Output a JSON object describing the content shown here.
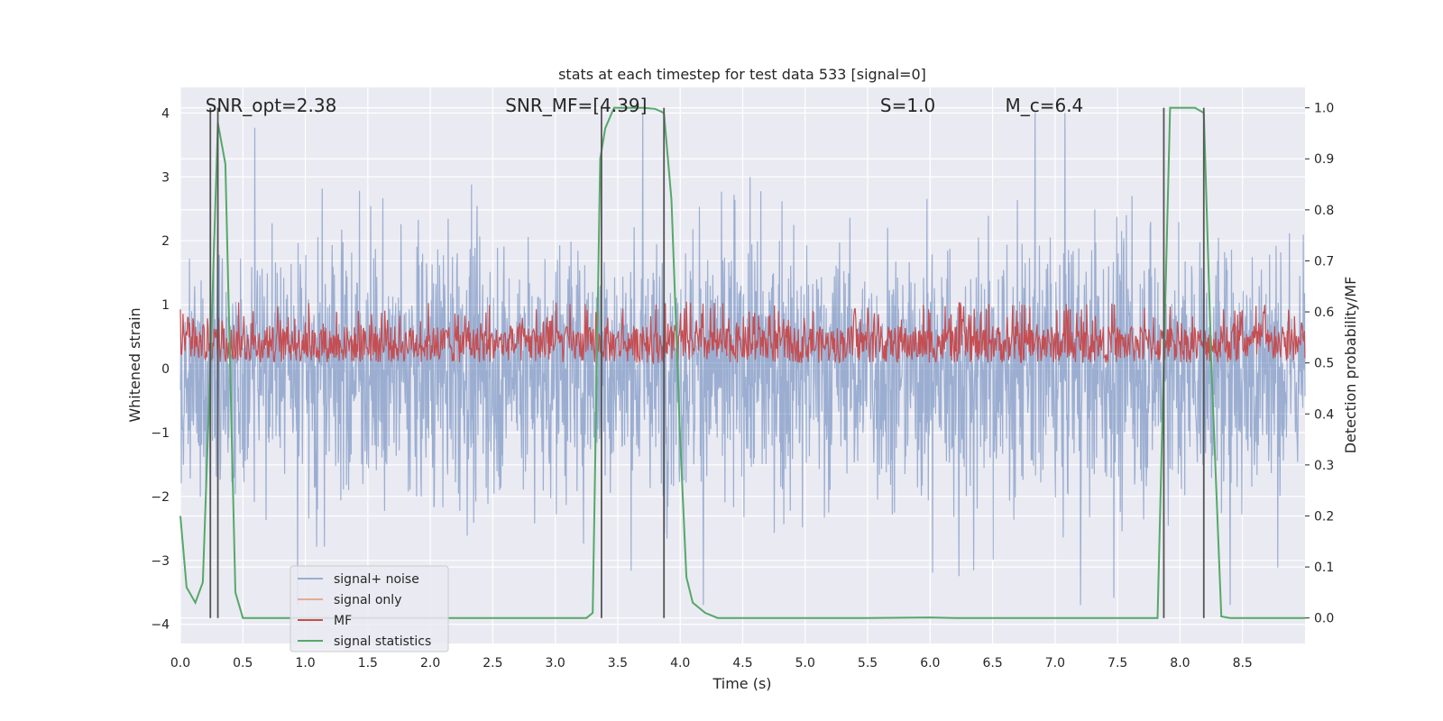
{
  "chart_data": {
    "type": "line",
    "title": "stats at each timestep for test data 533 [signal=0]",
    "xlabel": "Time (s)",
    "ylabel": "Whitened strain",
    "ylabel_right": "Detection probability/MF",
    "xlim": [
      0,
      9.0
    ],
    "ylim": [
      -4.3,
      4.4
    ],
    "ylim_right": [
      -0.05,
      1.04
    ],
    "x_ticks": [
      0.0,
      0.5,
      1.0,
      1.5,
      2.0,
      2.5,
      3.0,
      3.5,
      4.0,
      4.5,
      5.0,
      5.5,
      6.0,
      6.5,
      7.0,
      7.5,
      8.0,
      8.5
    ],
    "x_tick_labels": [
      "0.0",
      "0.5",
      "1.0",
      "1.5",
      "2.0",
      "2.5",
      "3.0",
      "3.5",
      "4.0",
      "4.5",
      "5.0",
      "5.5",
      "6.0",
      "6.5",
      "7.0",
      "7.5",
      "8.0",
      "8.5"
    ],
    "y_ticks": [
      4,
      3,
      2,
      1,
      0,
      -1,
      -2,
      -3,
      -4
    ],
    "y_tick_labels": [
      "4",
      "3",
      "2",
      "1",
      "0",
      "−1",
      "−2",
      "−3",
      "−4"
    ],
    "y_ticks_right": [
      1.0,
      0.9,
      0.8,
      0.7,
      0.6,
      0.5,
      0.4,
      0.3,
      0.2,
      0.1,
      0.0
    ],
    "y_tick_labels_right": [
      "1.0",
      "0.9",
      "0.8",
      "0.7",
      "0.6",
      "0.5",
      "0.4",
      "0.3",
      "0.2",
      "0.1",
      "0.0"
    ],
    "grid": true,
    "legend_position": "lower-left",
    "annotations": [
      {
        "text": "SNR_opt=2.38",
        "x": 0.2
      },
      {
        "text": "SNR_MF=[4.39]",
        "x": 2.6
      },
      {
        "text": "S=1.0",
        "x": 5.6
      },
      {
        "text": "M_c=6.4",
        "x": 6.6
      }
    ],
    "vertical_lines_x": [
      0.24,
      0.3,
      3.37,
      3.87,
      7.87,
      8.19
    ],
    "series": [
      {
        "name": "signal+ noise",
        "color": "#4c72b0",
        "style": "dense noise",
        "amplitude_sd": 1.0,
        "peak_range": [
          -3.7,
          4.0
        ]
      },
      {
        "name": "signal only",
        "color": "#dd8452",
        "values": []
      },
      {
        "name": "MF",
        "color": "#c44e52",
        "axis": "right",
        "style": "dense noise",
        "range": [
          0.5,
          0.62
        ]
      },
      {
        "name": "signal statistics",
        "color": "#55a868",
        "axis": "right",
        "x": [
          0.0,
          0.05,
          0.12,
          0.18,
          0.24,
          0.3,
          0.36,
          0.44,
          0.5,
          0.6,
          1.0,
          2.0,
          3.0,
          3.25,
          3.3,
          3.36,
          3.4,
          3.47,
          3.6,
          3.7,
          3.8,
          3.87,
          3.93,
          4.0,
          4.05,
          4.1,
          4.2,
          4.3,
          4.5,
          5.0,
          5.5,
          6.0,
          6.2,
          7.0,
          7.5,
          7.82,
          7.87,
          7.92,
          8.0,
          8.12,
          8.19,
          8.25,
          8.33,
          8.4,
          9.0
        ],
        "y": [
          0.2,
          0.06,
          0.03,
          0.07,
          0.5,
          0.97,
          0.89,
          0.05,
          0.0,
          0.0,
          0.0,
          0.0,
          0.0,
          0.0,
          0.01,
          0.9,
          0.96,
          1.0,
          1.0,
          1.0,
          0.998,
          0.99,
          0.82,
          0.35,
          0.08,
          0.03,
          0.01,
          0.0,
          0.0,
          0.0,
          0.0,
          0.001,
          0.0,
          0.0,
          0.0,
          0.0,
          0.5,
          1.0,
          1.0,
          1.0,
          0.99,
          0.5,
          0.003,
          0.0,
          0.0
        ]
      }
    ]
  }
}
